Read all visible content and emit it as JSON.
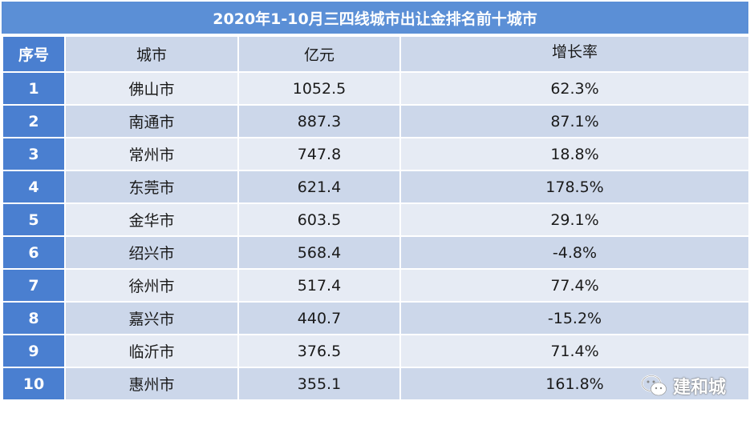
{
  "title": "2020年1-10月三四线城市出让金排名前十城市",
  "headers": {
    "rank": "序号",
    "city": "城市",
    "amount": "亿元",
    "growth": "增长率"
  },
  "rows": [
    {
      "rank": "1",
      "city": "佛山市",
      "amount": "1052.5",
      "growth": "62.3%"
    },
    {
      "rank": "2",
      "city": "南通市",
      "amount": "887.3",
      "growth": "87.1%"
    },
    {
      "rank": "3",
      "city": "常州市",
      "amount": "747.8",
      "growth": "18.8%"
    },
    {
      "rank": "4",
      "city": "东莞市",
      "amount": "621.4",
      "growth": "178.5%"
    },
    {
      "rank": "5",
      "city": "金华市",
      "amount": "603.5",
      "growth": "29.1%"
    },
    {
      "rank": "6",
      "city": "绍兴市",
      "amount": "568.4",
      "growth": "-4.8%"
    },
    {
      "rank": "7",
      "city": "徐州市",
      "amount": "517.4",
      "growth": "77.4%"
    },
    {
      "rank": "8",
      "city": "嘉兴市",
      "amount": "440.7",
      "growth": "-15.2%"
    },
    {
      "rank": "9",
      "city": "临沂市",
      "amount": "376.5",
      "growth": "71.4%"
    },
    {
      "rank": "10",
      "city": "惠州市",
      "amount": "355.1",
      "growth": "161.8%"
    }
  ],
  "watermark": {
    "text": "建和城",
    "icon": "wechat-icon"
  },
  "colors": {
    "title_bg": "#5b8fd6",
    "index_bg": "#4a7fd0",
    "row_dark": "#ccd7ea",
    "row_light": "#e6ebf4"
  }
}
